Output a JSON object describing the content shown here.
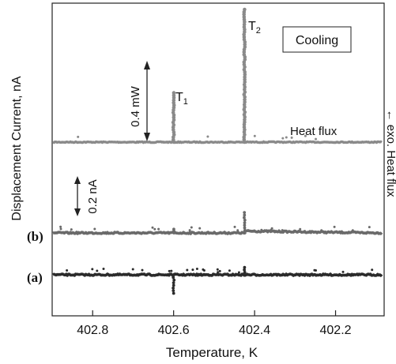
{
  "chart_data": {
    "type": "line",
    "xlabel": "Temperature, K",
    "ylabel": "Displacement Current, nA",
    "ylabel_right": "← exo. Heat flux",
    "xlim": [
      402.9,
      402.08
    ],
    "x_ticks": [
      402.8,
      402.6,
      402.4,
      402.2
    ],
    "x_tick_labels": [
      "402.8",
      "402.6",
      "402.4",
      "402.2"
    ],
    "legend": "Cooling",
    "annotations": {
      "t1": "T",
      "t1_sub": "1",
      "t2": "T",
      "t2_sub": "2",
      "scale_power": "0.4 mW",
      "scale_current": "0.2 nA",
      "heat_flux_label": "Heat flux",
      "label_b": "(b)",
      "label_a": "(a)"
    },
    "series": [
      {
        "name": "Heat flux",
        "color": "#8a8a8a",
        "baseline": 0,
        "scale_bar_value": 0.4,
        "peaks": [
          {
            "x": 402.6,
            "height": 0.26
          },
          {
            "x": 402.425,
            "height": 0.7
          }
        ]
      },
      {
        "name": "(b)",
        "color": "#6a6a6a",
        "baseline": 0,
        "scale_bar_value": 0.2,
        "step": {
          "x": 402.425,
          "before": 0.0,
          "after": 0.01
        },
        "peaks": [
          {
            "x": 402.425,
            "height": 0.11
          },
          {
            "x": 402.6,
            "height": 0.02
          }
        ]
      },
      {
        "name": "(a)",
        "color": "#2b2b2b",
        "baseline": 0,
        "peaks": [
          {
            "x": 402.6,
            "height": -0.1
          },
          {
            "x": 402.425,
            "height": 0.04
          }
        ]
      }
    ]
  }
}
